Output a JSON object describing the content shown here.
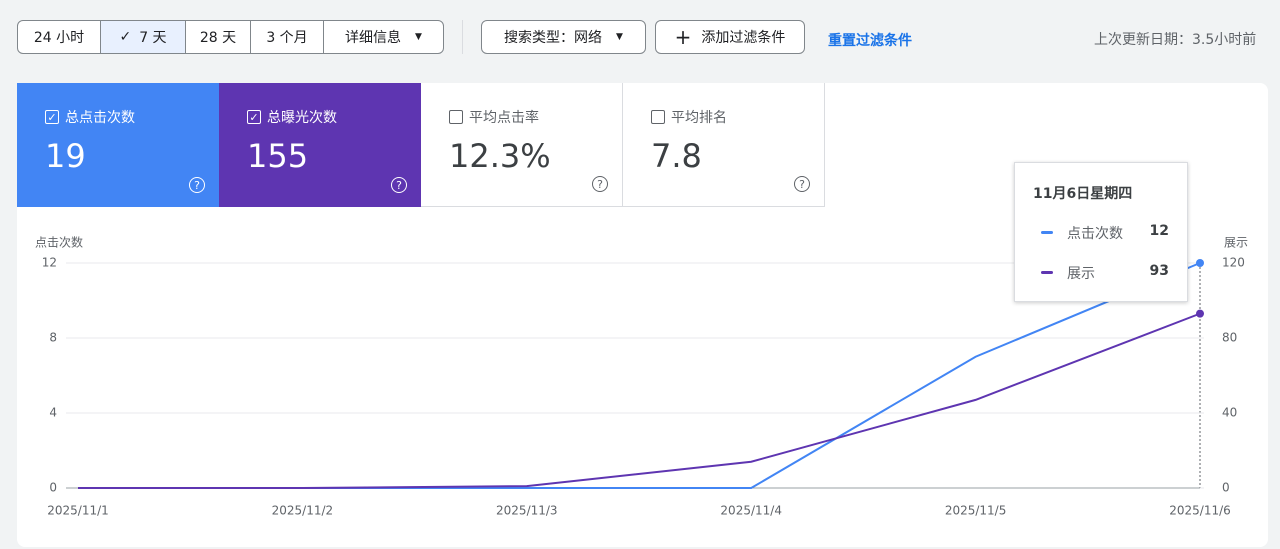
{
  "toolbar": {
    "time_ranges": [
      "24 小时",
      "7 天",
      "28 天",
      "3 个月"
    ],
    "details": "详细信息",
    "search_type": "搜索类型：网络",
    "add_filter": "添加过滤条件",
    "reset": "重置过滤条件",
    "last_updated": "上次更新日期：3.5小时前"
  },
  "metrics": [
    {
      "label": "总点击次数",
      "value": "19",
      "checked": true,
      "color": "#4285f4"
    },
    {
      "label": "总曝光次数",
      "value": "155",
      "checked": true,
      "color": "#5e35b1"
    },
    {
      "label": "平均点击率",
      "value": "12.3%",
      "checked": false
    },
    {
      "label": "平均排名",
      "value": "7.8",
      "checked": false
    }
  ],
  "chart_data": {
    "type": "line",
    "y_label": "点击次数",
    "y2_label": "展示",
    "x": [
      "2025/11/1",
      "2025/11/2",
      "2025/11/3",
      "2025/11/4",
      "2025/11/5",
      "2025/11/6"
    ],
    "series": [
      {
        "name": "点击次数",
        "color": "#4285f4",
        "values": [
          0,
          0,
          0,
          0,
          7,
          12
        ]
      },
      {
        "name": "展示",
        "color": "#5e35b1",
        "values": [
          0,
          0,
          1,
          14,
          47,
          93
        ],
        "axis": "y2"
      }
    ],
    "ylim": [
      0,
      12
    ],
    "yticks": [
      0,
      4,
      8,
      12
    ],
    "y2lim": [
      0,
      120
    ],
    "y2ticks": [
      0,
      40,
      80,
      120
    ],
    "grid": true
  },
  "tooltip": {
    "title": "11月6日星期四"
  }
}
